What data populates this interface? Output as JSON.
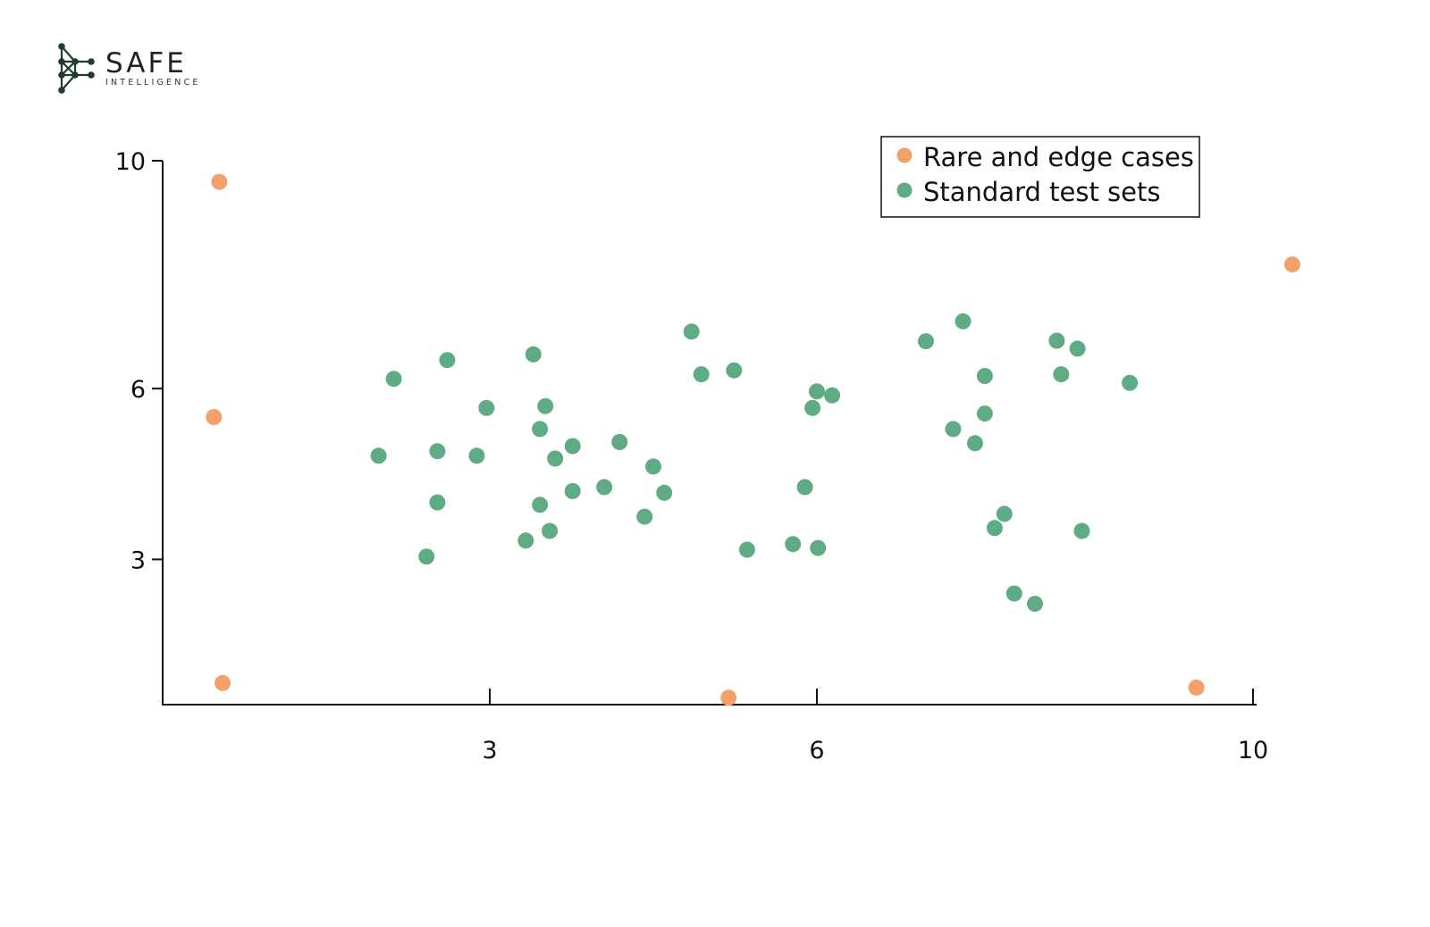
{
  "logo": {
    "name": "SAFE",
    "subtitle": "INTELLIGENCE",
    "color": "#1f3d2b"
  },
  "chart_data": {
    "type": "scatter",
    "title": "",
    "xlabel": "",
    "ylabel": "",
    "xlim": [
      0,
      10
    ],
    "ylim": [
      0.45,
      10
    ],
    "x_ticks": [
      3,
      6,
      10
    ],
    "y_ticks": [
      3,
      6,
      10
    ],
    "x_tick_labels": [
      "3",
      "6",
      "10"
    ],
    "y_tick_labels": [
      "3",
      "6",
      "10"
    ],
    "grid": false,
    "legend_position": "top-right",
    "series": [
      {
        "name": "Rare and edge cases",
        "color": "#f4a06b",
        "points": [
          [
            0.52,
            9.63
          ],
          [
            0.47,
            5.5
          ],
          [
            0.55,
            0.83
          ],
          [
            5.19,
            0.57
          ],
          [
            9.48,
            0.75
          ],
          [
            10.36,
            8.18
          ]
        ]
      },
      {
        "name": "Standard test sets",
        "color": "#5fab83",
        "points": [
          [
            1.98,
            4.82
          ],
          [
            2.12,
            6.17
          ],
          [
            2.42,
            3.05
          ],
          [
            2.52,
            4.0
          ],
          [
            2.52,
            4.9
          ],
          [
            2.61,
            6.5
          ],
          [
            2.88,
            4.82
          ],
          [
            2.97,
            5.66
          ],
          [
            3.33,
            3.33
          ],
          [
            3.4,
            6.6
          ],
          [
            3.46,
            3.96
          ],
          [
            3.46,
            5.29
          ],
          [
            3.51,
            5.69
          ],
          [
            3.55,
            3.5
          ],
          [
            3.6,
            4.77
          ],
          [
            3.76,
            4.99
          ],
          [
            3.76,
            4.2
          ],
          [
            4.05,
            4.27
          ],
          [
            4.19,
            5.06
          ],
          [
            4.42,
            3.75
          ],
          [
            4.5,
            4.63
          ],
          [
            4.6,
            4.17
          ],
          [
            4.85,
            7.0
          ],
          [
            4.94,
            6.25
          ],
          [
            5.24,
            6.32
          ],
          [
            5.36,
            3.17
          ],
          [
            5.78,
            3.27
          ],
          [
            5.89,
            4.27
          ],
          [
            5.96,
            5.66
          ],
          [
            6.0,
            5.95
          ],
          [
            6.01,
            3.2
          ],
          [
            6.14,
            5.88
          ],
          [
            7.0,
            6.83
          ],
          [
            7.25,
            5.29
          ],
          [
            7.34,
            7.18
          ],
          [
            7.45,
            5.04
          ],
          [
            7.54,
            6.22
          ],
          [
            7.54,
            5.56
          ],
          [
            7.63,
            3.55
          ],
          [
            7.72,
            3.8
          ],
          [
            7.81,
            2.4
          ],
          [
            8.0,
            2.22
          ],
          [
            8.2,
            6.84
          ],
          [
            8.24,
            6.25
          ],
          [
            8.39,
            6.7
          ],
          [
            8.43,
            3.5
          ],
          [
            8.87,
            6.1
          ]
        ]
      }
    ]
  }
}
